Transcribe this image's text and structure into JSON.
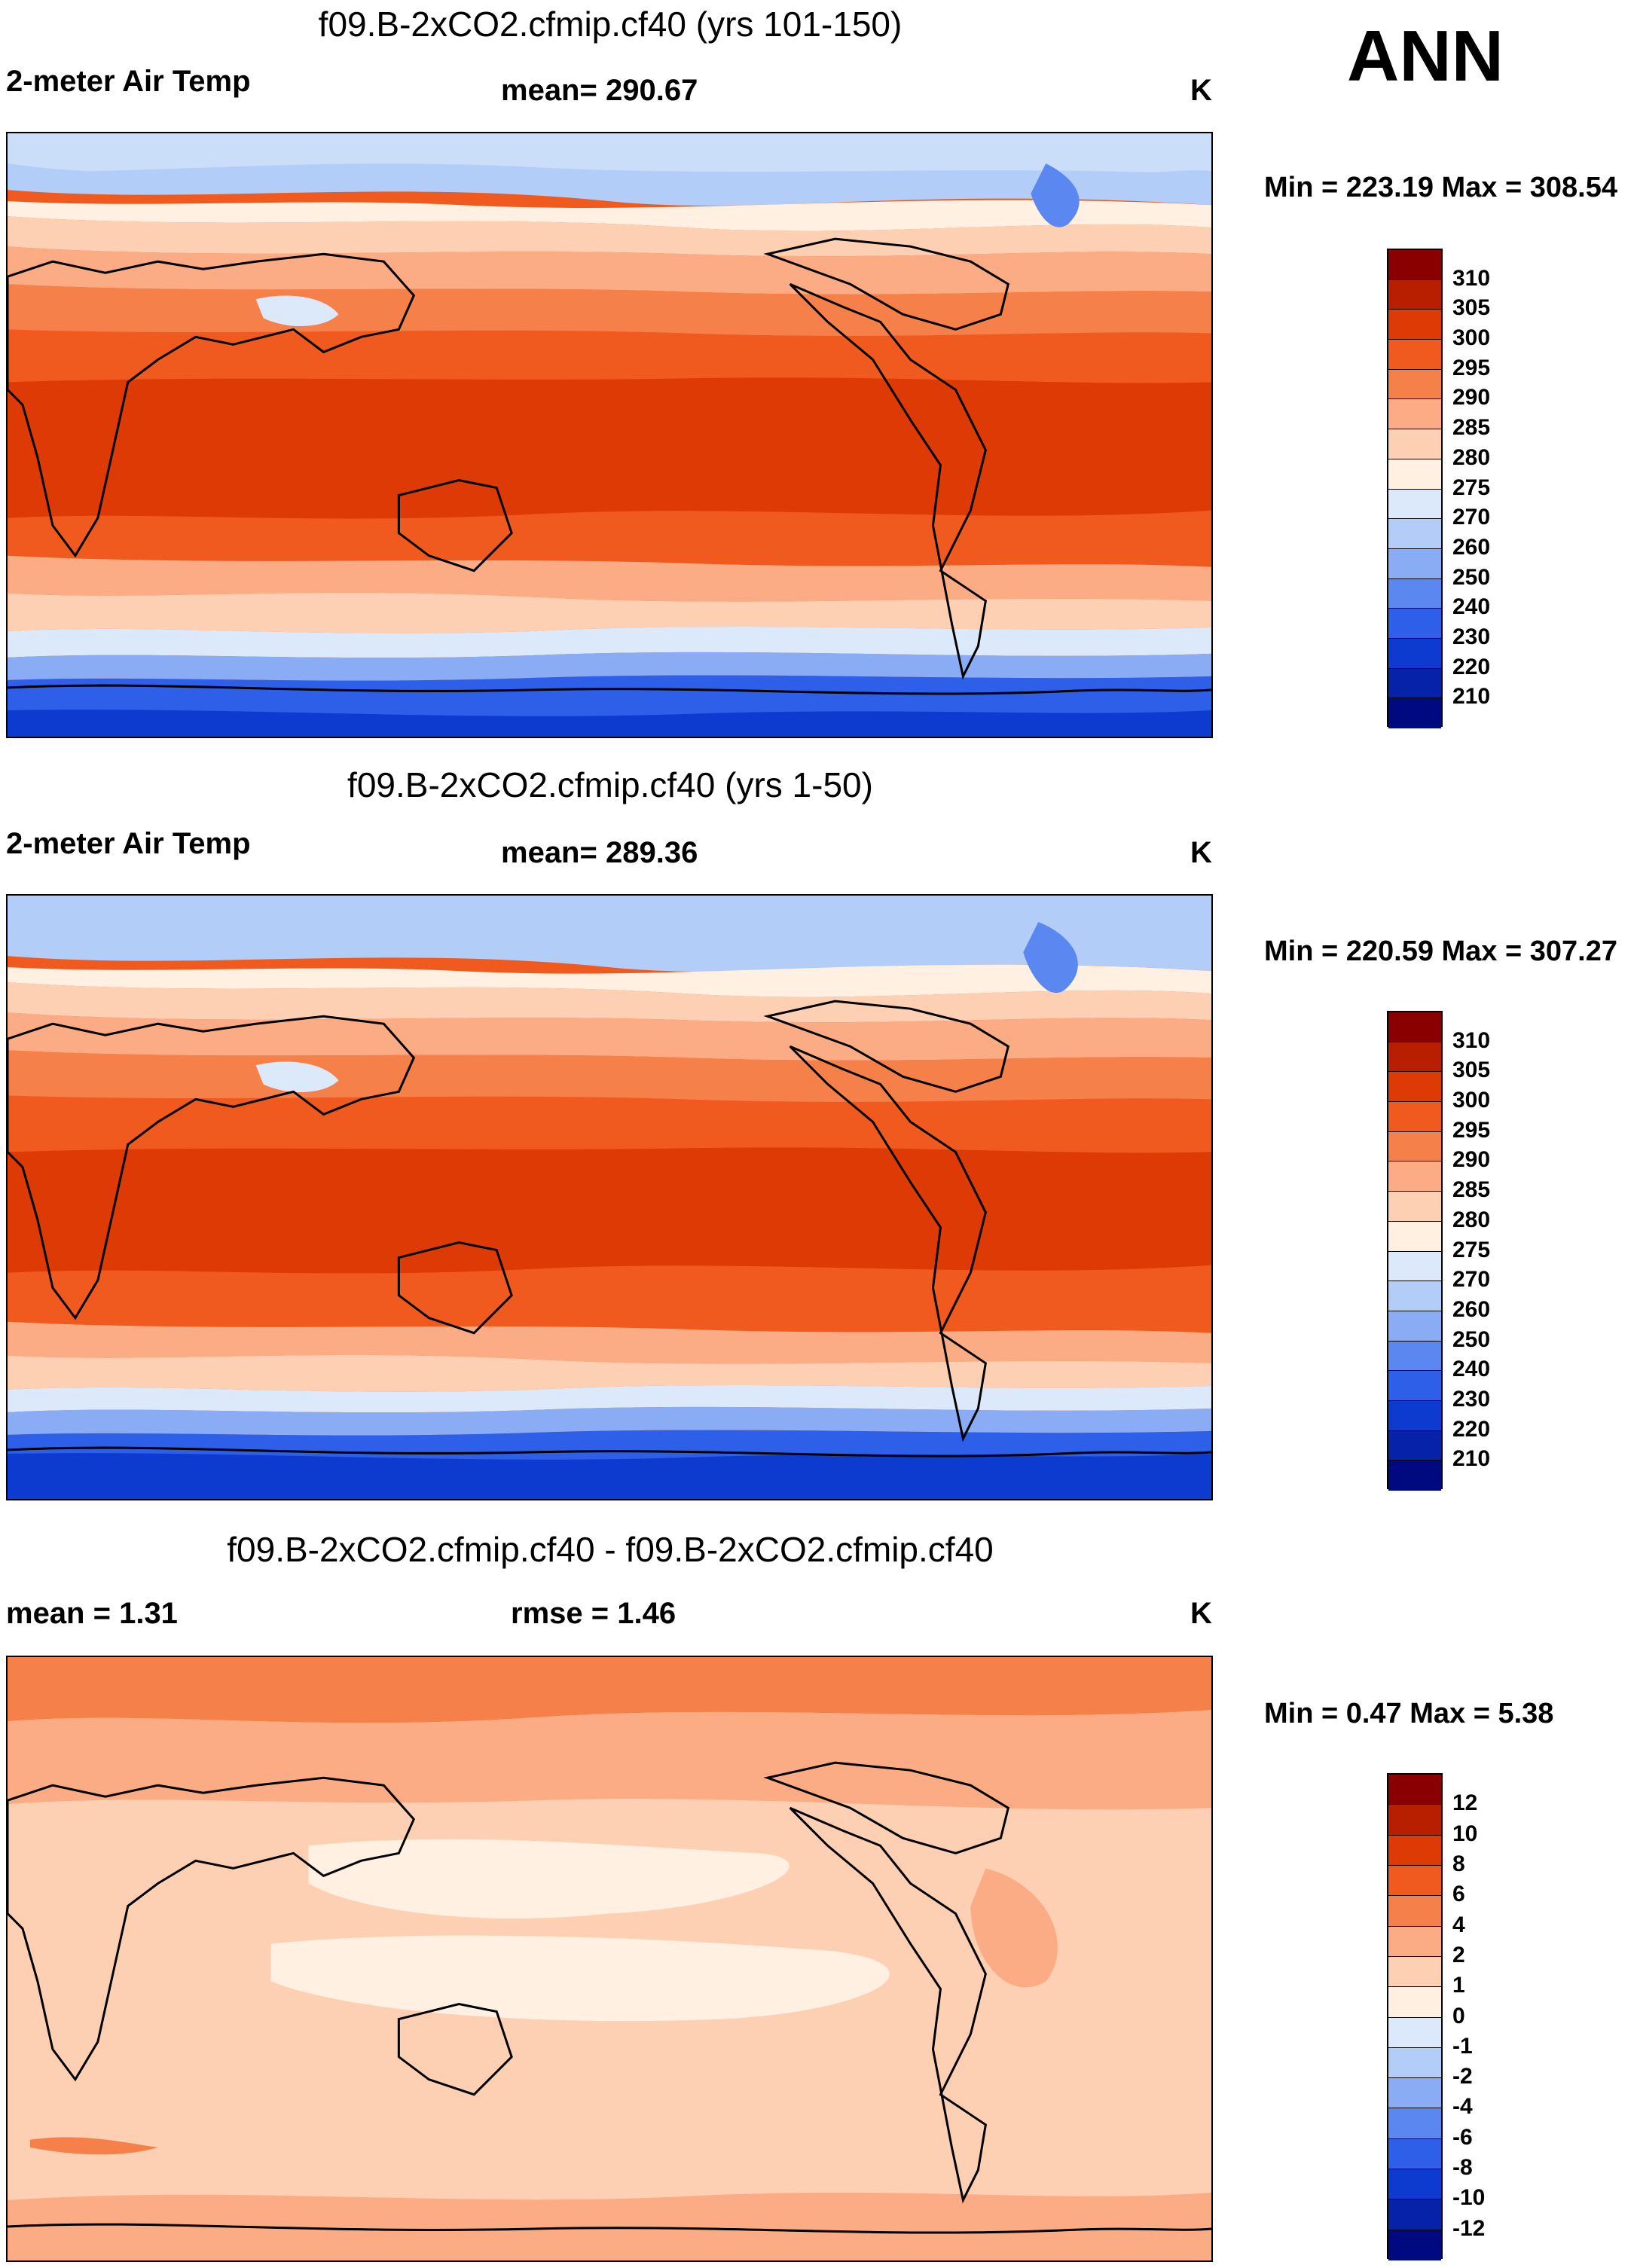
{
  "season": "ANN",
  "panels": [
    {
      "title": "f09.B-2xCO2.cfmip.cf40 (yrs 101-150)",
      "left_label": "2-meter Air Temp",
      "stat_label": "mean= 290.67",
      "units": "K",
      "minmax": "Min = 223.19 Max = 308.54"
    },
    {
      "title": "f09.B-2xCO2.cfmip.cf40 (yrs 1-50)",
      "left_label": "2-meter Air Temp",
      "stat_label": "mean= 289.36",
      "units": "K",
      "minmax": "Min = 220.59 Max = 307.27"
    },
    {
      "title": "f09.B-2xCO2.cfmip.cf40 - f09.B-2xCO2.cfmip.cf40",
      "left_label": "mean =   1.31",
      "stat_label": "rmse =   1.46",
      "units": "K",
      "minmax": "Min =   0.47 Max =   5.38"
    }
  ],
  "temp_colorbar": {
    "labels": [
      "310",
      "305",
      "300",
      "295",
      "290",
      "285",
      "280",
      "275",
      "270",
      "260",
      "250",
      "240",
      "230",
      "220",
      "210"
    ],
    "colors": [
      "#8a0000",
      "#b81e00",
      "#dd3a05",
      "#f05a1e",
      "#f6804a",
      "#fbac84",
      "#fdd0b4",
      "#fff0e2",
      "#dbe9fb",
      "#b2cdf7",
      "#89acf4",
      "#5a88f0",
      "#2d5fe8",
      "#0d3bd0",
      "#0522a8",
      "#000a80"
    ]
  },
  "diff_colorbar": {
    "labels": [
      "12",
      "10",
      "8",
      "6",
      "4",
      "2",
      "1",
      "0",
      "-1",
      "-2",
      "-4",
      "-6",
      "-8",
      "-10",
      "-12"
    ],
    "colors": [
      "#8a0000",
      "#b81e00",
      "#dd3a05",
      "#f05a1e",
      "#f6804a",
      "#fbac84",
      "#fdd0b4",
      "#fff0e2",
      "#dbe9fb",
      "#b2cdf7",
      "#89acf4",
      "#5a88f0",
      "#2d5fe8",
      "#0d3bd0",
      "#0522a8",
      "#000a80"
    ]
  }
}
